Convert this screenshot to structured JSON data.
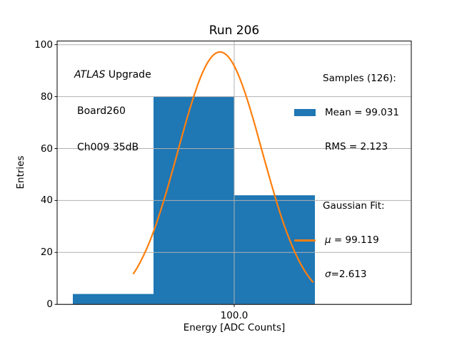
{
  "figure": {
    "title": "Run 206",
    "background_color": "#ffffff"
  },
  "axes": {
    "xlabel": "Energy [ADC Counts]",
    "ylabel": "Entries"
  },
  "annotation": {
    "experiment_italic": "ATLAS",
    "experiment_rest": " Upgrade",
    "board": "Board260",
    "channel": "Ch009 35dB"
  },
  "legend": {
    "samples_header": "Samples (126):",
    "mean_label": "Mean = 99.031",
    "rms_label": "RMS = 2.123",
    "fit_header": "Gaussian Fit:",
    "mu_symbol": "μ",
    "mu_rest": " = 99.119",
    "sigma_symbol": "σ",
    "sigma_rest": "=2.613",
    "samples_color": "#1f77b4",
    "fit_color": "#ff7f0e"
  },
  "chart_data": {
    "type": "bar",
    "subtype": "histogram_with_gaussian_fit",
    "title": "Run 206",
    "xlabel": "Energy [ADC Counts]",
    "ylabel": "Entries",
    "xlim": [
      89.027,
      110.973
    ],
    "ylim": [
      0,
      101.4
    ],
    "grid": true,
    "grid_color": "#b0b0b0",
    "spine_color": "#000000",
    "xticks": [
      {
        "value": 100.0,
        "label": "100.0"
      }
    ],
    "yticks": [
      {
        "value": 0,
        "label": "0"
      },
      {
        "value": 20,
        "label": "20"
      },
      {
        "value": 40,
        "label": "40"
      },
      {
        "value": 60,
        "label": "60"
      },
      {
        "value": 80,
        "label": "80"
      },
      {
        "value": 100,
        "label": "100"
      }
    ],
    "histogram": {
      "bin_edges": [
        90,
        95,
        100,
        105
      ],
      "counts": [
        4,
        80,
        42
      ],
      "total_entries": 126,
      "mean": 99.031,
      "rms": 2.123,
      "color": "#1f77b4"
    },
    "gaussian_fit": {
      "mu": 99.119,
      "sigma": 2.613,
      "amplitude": 97.2,
      "x_start": 93.76,
      "x_end": 104.87,
      "color": "#ff7f0e",
      "linewidth": 2.2
    }
  }
}
